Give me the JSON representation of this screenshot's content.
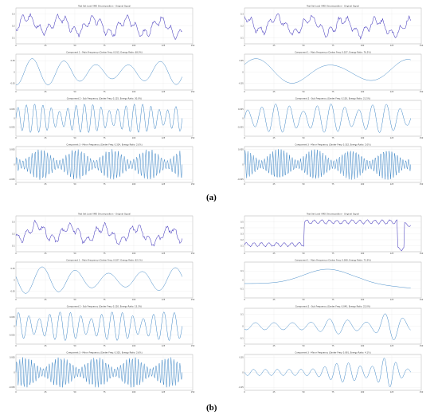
{
  "figure": {
    "captions": [
      "(a)",
      "(b)"
    ],
    "colors": {
      "signal": "#4a3fbf",
      "component": "#3d86c6",
      "grid": "#e5e5e5",
      "frame": "#999999"
    }
  },
  "chart_data": [
    {
      "type": "line",
      "id": "a-left",
      "panels": [
        {
          "title": "Test Set Load VMD Decomposition - Original Signal",
          "kind": "signal",
          "ylim": [
            0.05,
            0.35
          ],
          "yticks": [
            0.1,
            0.2,
            0.3
          ],
          "seed": 11
        },
        {
          "title": "Component 1 - Main Frequency (Center Freq: 0.012, Energy Ratio: 68.0%)",
          "kind": "smooth",
          "ylim": [
            -0.08,
            0.08
          ],
          "yticks": [
            -0.05,
            0.0,
            0.05
          ],
          "cycles": 5.2,
          "seed": 12
        },
        {
          "title": "Component 2 - Sub Frequency (Center Freq: 0.125, Energy Ratio: 30.0%)",
          "kind": "mid",
          "ylim": [
            -0.05,
            0.05
          ],
          "yticks": [
            -0.025,
            0.0,
            0.025
          ],
          "cycles": 20,
          "seed": 13
        },
        {
          "title": "Component 3 - Minor Frequency (Center Freq: 0.324, Energy Ratio: 2.0%)",
          "kind": "high",
          "ylim": [
            -0.006,
            0.006
          ],
          "yticks": [
            -0.005,
            0.0,
            0.005
          ],
          "cycles": 54,
          "seed": 14
        }
      ],
      "x": [
        0,
        150
      ],
      "xticks": [
        0,
        25,
        50,
        75,
        100,
        125,
        150
      ]
    },
    {
      "type": "line",
      "id": "a-right",
      "panels": [
        {
          "title": "Test Set Load VMD Decomposition - Original Signal",
          "kind": "signal",
          "ylim": [
            0.05,
            0.35
          ],
          "yticks": [
            0.1,
            0.2,
            0.3
          ],
          "seed": 21
        },
        {
          "title": "Component 1 - Main Frequency (Center Freq: 0.027, Energy Ratio: 76.5%)",
          "kind": "smooth",
          "ylim": [
            -0.08,
            0.08
          ],
          "yticks": [
            -0.05,
            0.0,
            0.05
          ],
          "cycles": 2.2,
          "seed": 22
        },
        {
          "title": "Component 2 - Sub Frequency (Center Freq: 0.120, Energy Ratio: 21.5%)",
          "kind": "mid",
          "ylim": [
            -0.05,
            0.05
          ],
          "yticks": [
            -0.025,
            0.0,
            0.025
          ],
          "cycles": 12,
          "seed": 23
        },
        {
          "title": "Component 3 - Minor Frequency (Center Freq: 0.332, Energy Ratio: 2.0%)",
          "kind": "high",
          "ylim": [
            -0.006,
            0.006
          ],
          "yticks": [
            -0.005,
            0.0,
            0.005
          ],
          "cycles": 60,
          "seed": 24
        }
      ],
      "x": [
        0,
        150
      ],
      "xticks": [
        0,
        25,
        50,
        75,
        100,
        125,
        150
      ]
    },
    {
      "type": "line",
      "id": "b-left",
      "panels": [
        {
          "title": "Test Set Load VMD Decomposition - Original Signal",
          "kind": "signal",
          "ylim": [
            0.05,
            0.35
          ],
          "yticks": [
            0.1,
            0.2,
            0.3
          ],
          "seed": 31
        },
        {
          "title": "Component 1 - Main Frequency (Center Freq: 0.027, Energy Ratio: 82.1%)",
          "kind": "smooth",
          "ylim": [
            -0.08,
            0.08
          ],
          "yticks": [
            -0.05,
            0.0,
            0.05
          ],
          "cycles": 5,
          "seed": 32
        },
        {
          "title": "Component 2 - Sub Frequency (Center Freq: 0.120, Energy Ratio: 15.3%)",
          "kind": "mid",
          "ylim": [
            -0.05,
            0.05
          ],
          "yticks": [
            -0.025,
            0.0,
            0.025
          ],
          "cycles": 16,
          "seed": 33
        },
        {
          "title": "Component 3 - Minor Frequency (Center Freq: 0.325, Energy Ratio: 2.6%)",
          "kind": "high",
          "ylim": [
            -0.006,
            0.006
          ],
          "yticks": [
            -0.005,
            0.0,
            0.005
          ],
          "cycles": 56,
          "seed": 34
        }
      ],
      "x": [
        0,
        150
      ],
      "xticks": [
        0,
        25,
        50,
        75,
        100,
        125,
        150
      ]
    },
    {
      "type": "line",
      "id": "b-right",
      "panels": [
        {
          "title": "Test Set Load VMD Decomposition - Original Signal",
          "kind": "step",
          "ylim": [
            0.0,
            0.6
          ],
          "yticks": [
            0.1,
            0.2,
            0.3,
            0.4,
            0.5
          ],
          "seed": 41
        },
        {
          "title": "Component 1 - Main Frequency (Center Freq: 0.008, Energy Ratio: 73.9%)",
          "kind": "hump",
          "ylim": [
            -0.2,
            0.2
          ],
          "yticks": [
            -0.1,
            0.0,
            0.1
          ],
          "seed": 42
        },
        {
          "title": "Component 2 - Sub Frequency (Center Freq: 0.045, Energy Ratio: 22.0%)",
          "kind": "burst",
          "ylim": [
            -0.15,
            0.15
          ],
          "yticks": [
            -0.1,
            0.0,
            0.1
          ],
          "cycles": 9,
          "seed": 43
        },
        {
          "title": "Component 3 - Minor Frequency (Center Freq: 0.091, Energy Ratio: 4.1%)",
          "kind": "burst2",
          "ylim": [
            -0.06,
            0.06
          ],
          "yticks": [
            -0.05,
            0.0,
            0.05
          ],
          "cycles": 14,
          "seed": 44
        }
      ],
      "x": [
        0,
        150
      ],
      "xticks": [
        0,
        25,
        50,
        75,
        100,
        125,
        150
      ]
    }
  ]
}
